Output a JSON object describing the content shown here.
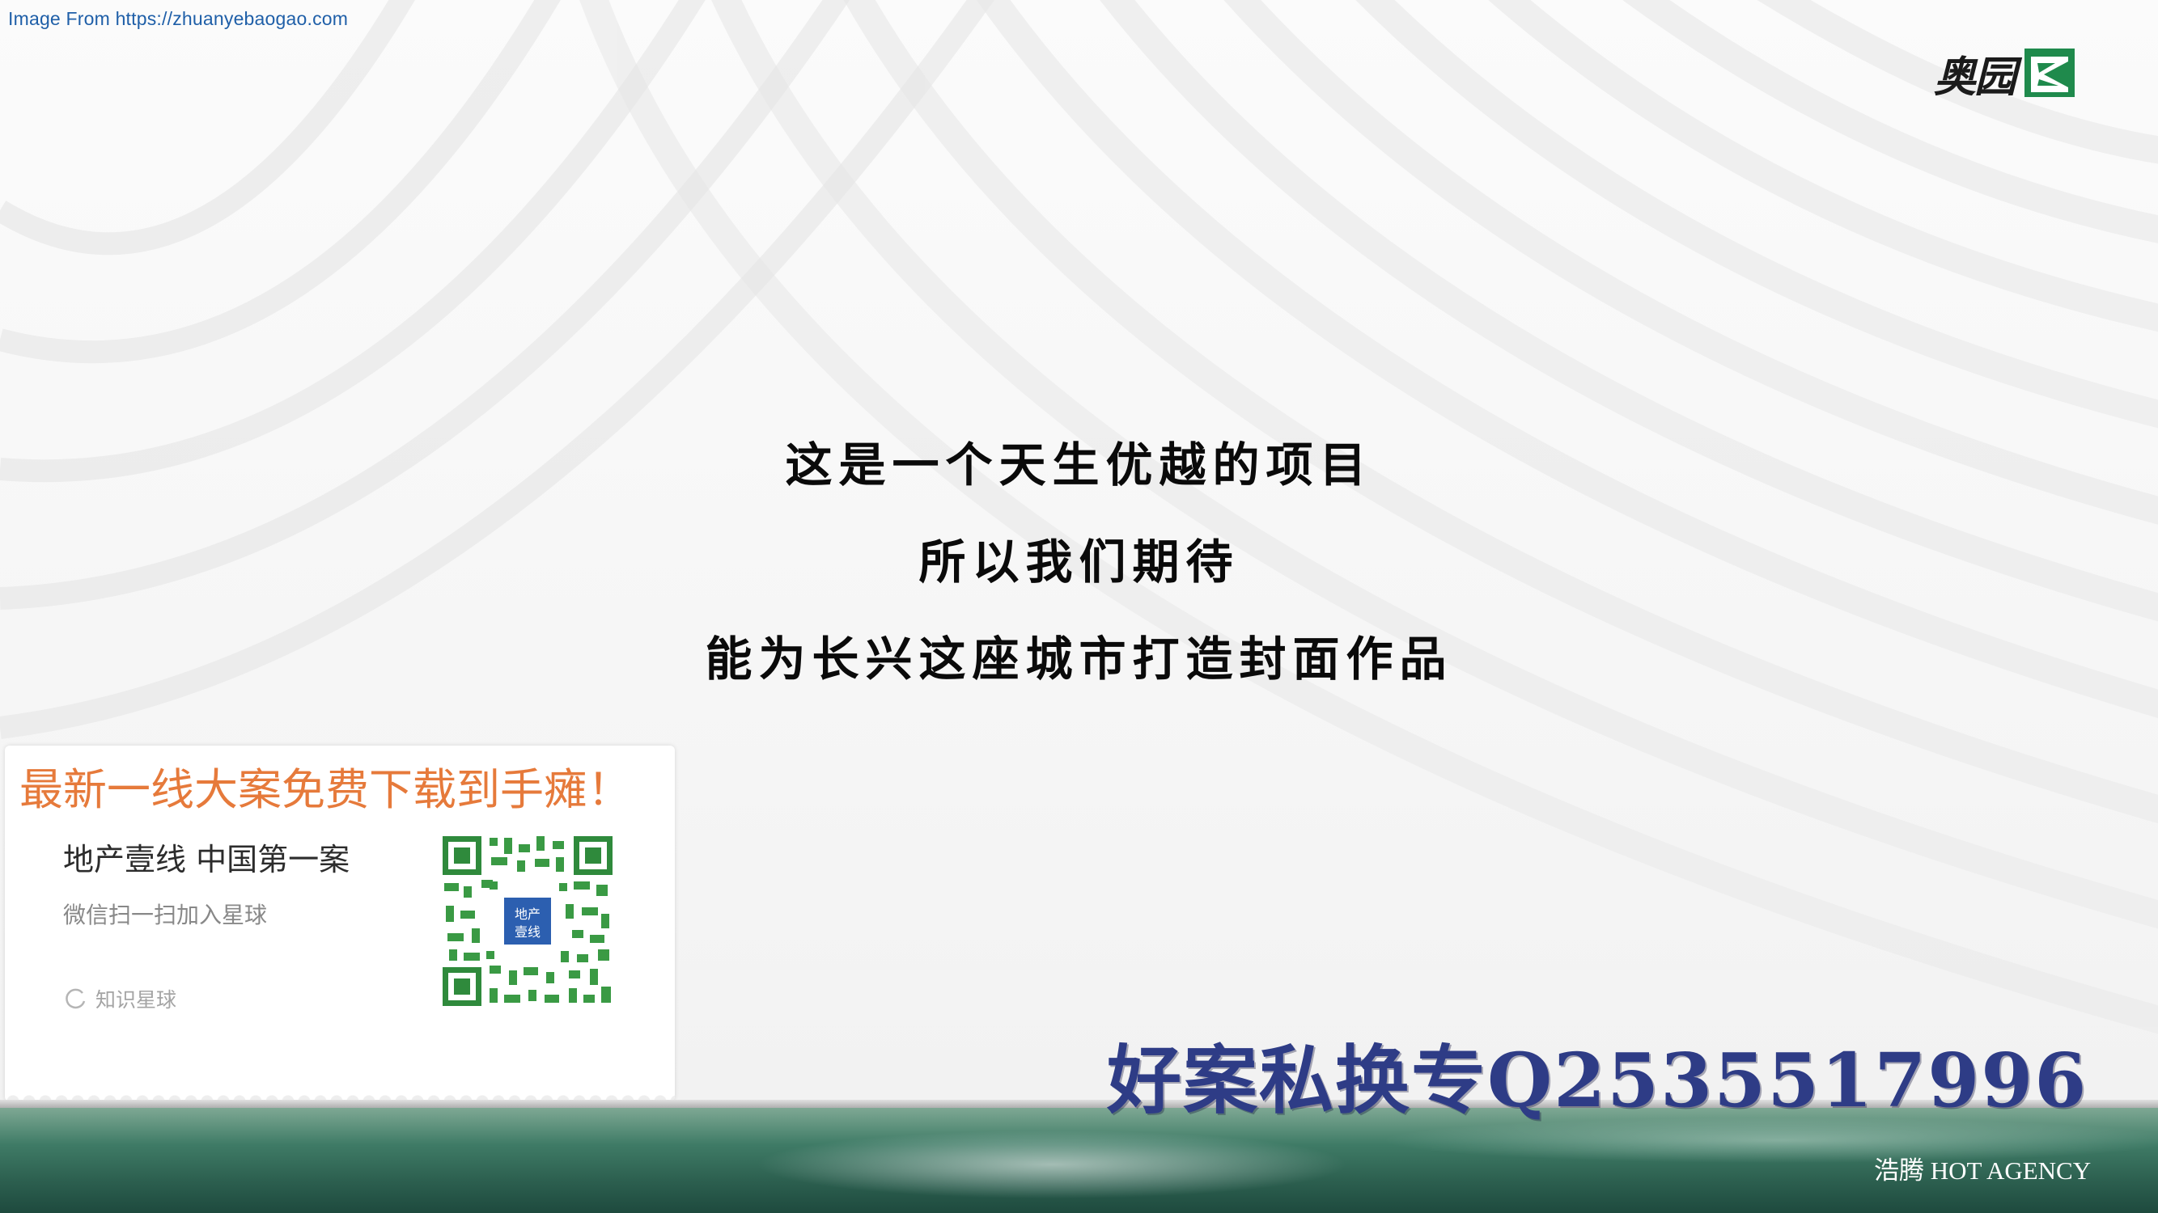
{
  "source_credit": "Image From https://zhuanyebaogao.com",
  "logo": {
    "text": "奥园",
    "icon": "aoyuan-logo-mark-icon"
  },
  "statement": {
    "lines": [
      "这是一个天生优越的项目",
      "所以我们期待",
      "能为长兴这座城市打造封面作品"
    ]
  },
  "promo": {
    "headline": "最新一线大案免费下载到手瘫！",
    "title": "地产壹线 中国第一案",
    "subtitle": "微信扫一扫加入星球",
    "brand_label": "知识星球",
    "qr_center_text": "地产壹线",
    "headline_color": "#e67a3b",
    "qr_color": "#2f8a3c"
  },
  "watermark": "好案私换专Q2535517996",
  "footer": {
    "agency": "浩腾 HOT AGENCY"
  },
  "colors": {
    "watermark": "#2e3c86",
    "logo_green": "#1f8a4c",
    "footer_green": "#2c5f4f"
  }
}
